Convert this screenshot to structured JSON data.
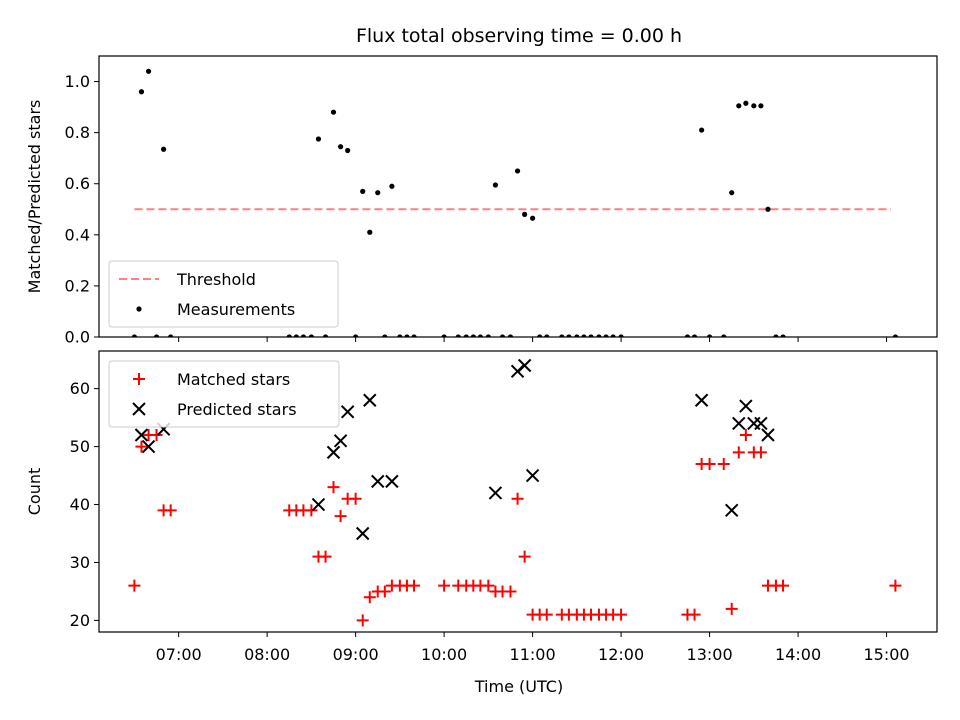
{
  "chart_data": {
    "title": "Flux total observing time = 0.00 h",
    "xlabel": "Time (UTC)",
    "x_ticks": [
      "07:00",
      "08:00",
      "09:00",
      "10:00",
      "11:00",
      "12:00",
      "13:00",
      "14:00",
      "15:00"
    ],
    "x_tick_hours": [
      7,
      8,
      9,
      10,
      11,
      12,
      13,
      14,
      15
    ],
    "xlim_hours": [
      6.1,
      15.57
    ],
    "panels": [
      {
        "type": "scatter",
        "ylabel": "Matched/Predicted stars",
        "ylim": [
          0,
          1.1
        ],
        "y_ticks": [
          0.0,
          0.2,
          0.4,
          0.6,
          0.8,
          1.0
        ],
        "y_tick_labels": [
          "0.0",
          "0.2",
          "0.4",
          "0.6",
          "0.8",
          "1.0"
        ],
        "legend": {
          "placement": "lower-left",
          "entries": [
            "Threshold",
            "Measurements"
          ]
        },
        "threshold": {
          "name": "Threshold",
          "value": 0.5,
          "x_range_hours": [
            6.5,
            15.05
          ],
          "color": "#ff8080",
          "style": "dashed"
        },
        "series": [
          {
            "name": "Measurements",
            "color": "#000000",
            "marker": "dot",
            "points": [
              [
                6.5,
                0
              ],
              [
                6.58,
                0.96
              ],
              [
                6.66,
                1.04
              ],
              [
                6.75,
                0
              ],
              [
                6.83,
                0.735
              ],
              [
                6.91,
                0
              ],
              [
                8.25,
                0
              ],
              [
                8.33,
                0
              ],
              [
                8.41,
                0
              ],
              [
                8.5,
                0
              ],
              [
                8.58,
                0.775
              ],
              [
                8.66,
                0
              ],
              [
                8.75,
                0.88
              ],
              [
                8.83,
                0.745
              ],
              [
                8.91,
                0.73
              ],
              [
                9.0,
                0
              ],
              [
                9.08,
                0.57
              ],
              [
                9.16,
                0.41
              ],
              [
                9.25,
                0.565
              ],
              [
                9.33,
                0
              ],
              [
                9.41,
                0.59
              ],
              [
                9.5,
                0
              ],
              [
                9.58,
                0
              ],
              [
                9.66,
                0
              ],
              [
                10.0,
                0
              ],
              [
                10.16,
                0
              ],
              [
                10.25,
                0
              ],
              [
                10.33,
                0
              ],
              [
                10.41,
                0
              ],
              [
                10.5,
                0
              ],
              [
                10.58,
                0.595
              ],
              [
                10.66,
                0
              ],
              [
                10.75,
                0
              ],
              [
                10.83,
                0.65
              ],
              [
                10.91,
                0.48
              ],
              [
                11.0,
                0.465
              ],
              [
                11.08,
                0
              ],
              [
                11.16,
                0
              ],
              [
                11.33,
                0
              ],
              [
                11.41,
                0
              ],
              [
                11.5,
                0
              ],
              [
                11.58,
                0
              ],
              [
                11.66,
                0
              ],
              [
                11.75,
                0
              ],
              [
                11.83,
                0
              ],
              [
                11.91,
                0
              ],
              [
                12.0,
                0
              ],
              [
                12.75,
                0
              ],
              [
                12.83,
                0
              ],
              [
                12.91,
                0.81
              ],
              [
                13.0,
                0
              ],
              [
                13.16,
                0
              ],
              [
                13.25,
                0.565
              ],
              [
                13.33,
                0.905
              ],
              [
                13.41,
                0.915
              ],
              [
                13.5,
                0.905
              ],
              [
                13.58,
                0.905
              ],
              [
                13.66,
                0.5
              ],
              [
                13.75,
                0
              ],
              [
                13.83,
                0
              ],
              [
                15.1,
                0
              ]
            ]
          }
        ]
      },
      {
        "type": "scatter",
        "ylabel": "Count",
        "ylim": [
          18,
          66.5
        ],
        "y_ticks": [
          20,
          30,
          40,
          50,
          60
        ],
        "y_tick_labels": [
          "20",
          "30",
          "40",
          "50",
          "60"
        ],
        "legend": {
          "placement": "upper-left",
          "entries": [
            "Matched stars",
            "Predicted stars"
          ]
        },
        "series": [
          {
            "name": "Matched stars",
            "color": "#ff0000",
            "marker": "plus",
            "points": [
              [
                6.5,
                26
              ],
              [
                6.58,
                50
              ],
              [
                6.66,
                52
              ],
              [
                6.75,
                52
              ],
              [
                6.83,
                39
              ],
              [
                6.91,
                39
              ],
              [
                8.25,
                39
              ],
              [
                8.33,
                39
              ],
              [
                8.41,
                39
              ],
              [
                8.5,
                39
              ],
              [
                8.58,
                31
              ],
              [
                8.66,
                31
              ],
              [
                8.75,
                43
              ],
              [
                8.83,
                38
              ],
              [
                8.91,
                41
              ],
              [
                9.0,
                41
              ],
              [
                9.08,
                20
              ],
              [
                9.16,
                24
              ],
              [
                9.25,
                25
              ],
              [
                9.33,
                25
              ],
              [
                9.41,
                26
              ],
              [
                9.5,
                26
              ],
              [
                9.58,
                26
              ],
              [
                9.66,
                26
              ],
              [
                10.0,
                26
              ],
              [
                10.16,
                26
              ],
              [
                10.25,
                26
              ],
              [
                10.33,
                26
              ],
              [
                10.41,
                26
              ],
              [
                10.5,
                26
              ],
              [
                10.58,
                25
              ],
              [
                10.66,
                25
              ],
              [
                10.75,
                25
              ],
              [
                10.83,
                41
              ],
              [
                10.91,
                31
              ],
              [
                11.0,
                21
              ],
              [
                11.08,
                21
              ],
              [
                11.16,
                21
              ],
              [
                11.33,
                21
              ],
              [
                11.41,
                21
              ],
              [
                11.5,
                21
              ],
              [
                11.58,
                21
              ],
              [
                11.66,
                21
              ],
              [
                11.75,
                21
              ],
              [
                11.83,
                21
              ],
              [
                11.91,
                21
              ],
              [
                12.0,
                21
              ],
              [
                12.75,
                21
              ],
              [
                12.83,
                21
              ],
              [
                12.91,
                47
              ],
              [
                13.0,
                47
              ],
              [
                13.16,
                47
              ],
              [
                13.25,
                22
              ],
              [
                13.33,
                49
              ],
              [
                13.41,
                52
              ],
              [
                13.5,
                49
              ],
              [
                13.58,
                49
              ],
              [
                13.66,
                26
              ],
              [
                13.75,
                26
              ],
              [
                13.83,
                26
              ],
              [
                15.1,
                26
              ]
            ]
          },
          {
            "name": "Predicted stars",
            "color": "#000000",
            "marker": "x",
            "points": [
              [
                6.58,
                52
              ],
              [
                6.66,
                50
              ],
              [
                6.83,
                53
              ],
              [
                8.58,
                40
              ],
              [
                8.75,
                49
              ],
              [
                8.83,
                51
              ],
              [
                8.91,
                56
              ],
              [
                9.08,
                35
              ],
              [
                9.16,
                58
              ],
              [
                9.25,
                44
              ],
              [
                9.41,
                44
              ],
              [
                10.58,
                42
              ],
              [
                10.83,
                63
              ],
              [
                10.91,
                64
              ],
              [
                11.0,
                45
              ],
              [
                12.91,
                58
              ],
              [
                13.25,
                39
              ],
              [
                13.33,
                54
              ],
              [
                13.41,
                57
              ],
              [
                13.5,
                54
              ],
              [
                13.58,
                54
              ],
              [
                13.66,
                52
              ]
            ]
          }
        ]
      }
    ]
  }
}
